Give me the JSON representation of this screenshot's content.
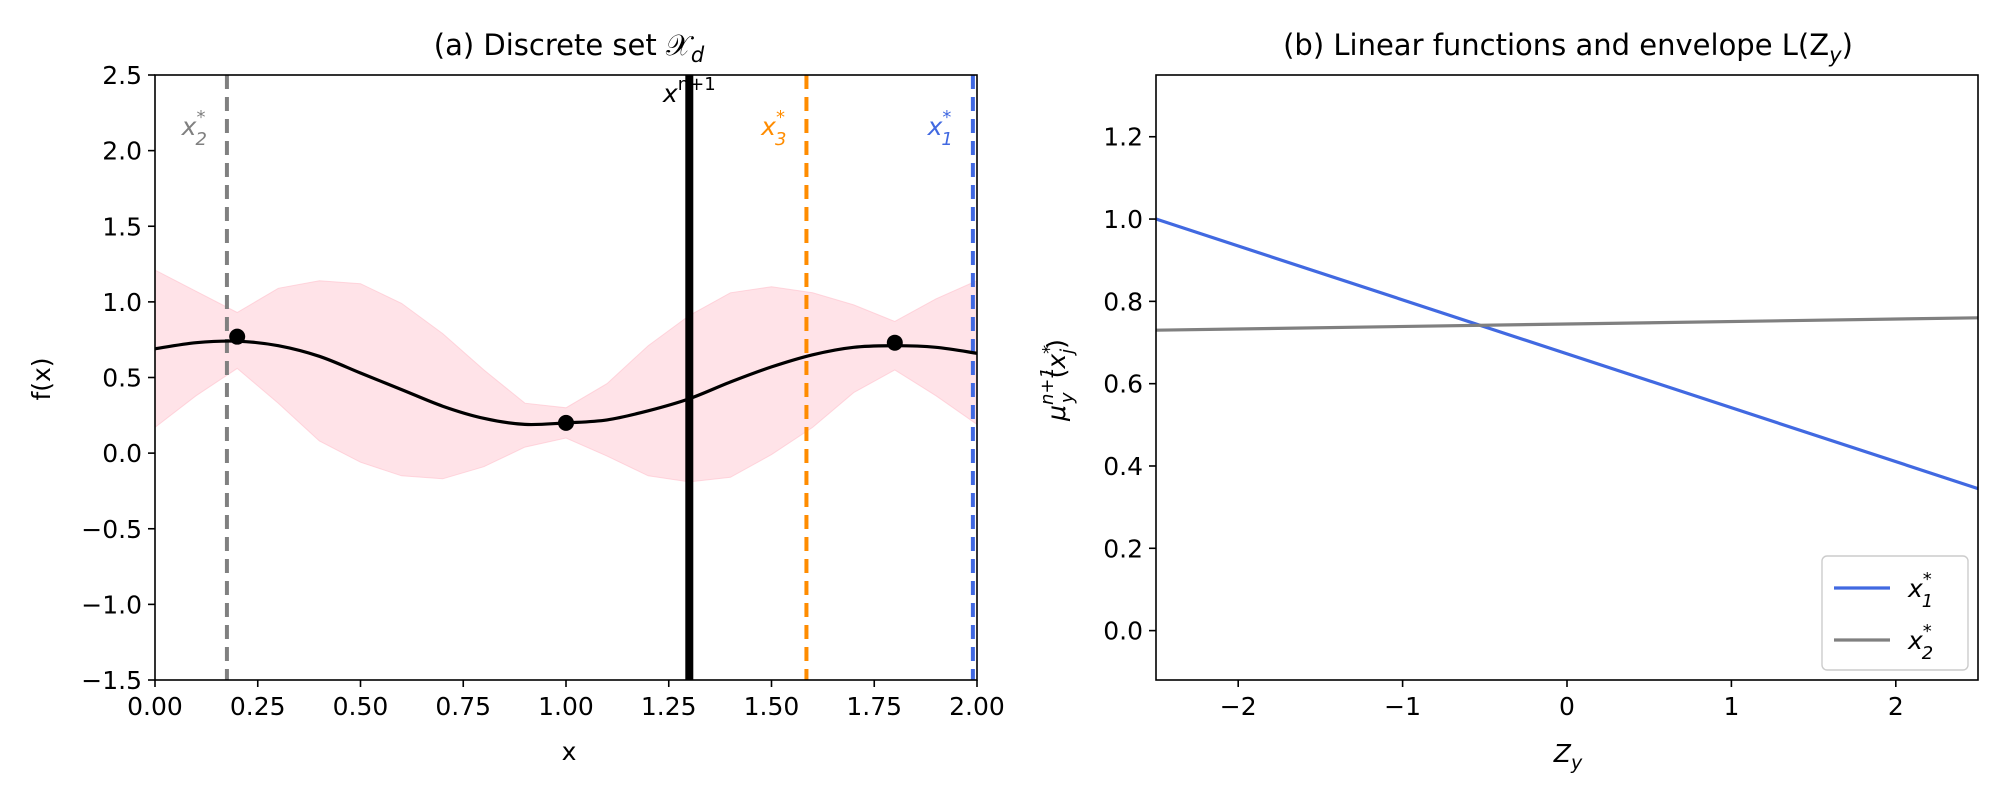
{
  "chart_data": [
    {
      "type": "line",
      "title": "(a) Discrete set 𝒳",
      "title_subscript": "d",
      "xlabel": "x",
      "ylabel": "f(x)",
      "xlim": [
        0.0,
        2.0
      ],
      "ylim": [
        -1.5,
        2.5
      ],
      "x_ticks": [
        "0.00",
        "0.25",
        "0.50",
        "0.75",
        "1.00",
        "1.25",
        "1.50",
        "1.75",
        "2.00"
      ],
      "y_ticks": [
        "−1.5",
        "−1.0",
        "−0.5",
        "0.0",
        "0.5",
        "1.0",
        "1.5",
        "2.0",
        "2.5"
      ],
      "grid": false,
      "mean_curve": {
        "color": "#000000",
        "x": [
          0.0,
          0.1,
          0.2,
          0.3,
          0.4,
          0.5,
          0.6,
          0.7,
          0.8,
          0.9,
          1.0,
          1.1,
          1.2,
          1.3,
          1.4,
          1.5,
          1.6,
          1.7,
          1.8,
          1.9,
          2.0
        ],
        "y": [
          0.69,
          0.73,
          0.74,
          0.71,
          0.64,
          0.53,
          0.42,
          0.31,
          0.23,
          0.19,
          0.2,
          0.22,
          0.28,
          0.36,
          0.47,
          0.57,
          0.65,
          0.7,
          0.71,
          0.7,
          0.66
        ]
      },
      "confidence_band": {
        "color": "#ffc0cb",
        "x": [
          0.0,
          0.1,
          0.2,
          0.3,
          0.4,
          0.5,
          0.6,
          0.7,
          0.8,
          0.9,
          1.0,
          1.1,
          1.2,
          1.3,
          1.4,
          1.5,
          1.6,
          1.7,
          1.8,
          1.9,
          2.0
        ],
        "lower": [
          0.17,
          0.38,
          0.56,
          0.33,
          0.08,
          -0.06,
          -0.15,
          -0.17,
          -0.09,
          0.04,
          0.1,
          -0.02,
          -0.15,
          -0.19,
          -0.16,
          -0.01,
          0.17,
          0.4,
          0.55,
          0.38,
          0.19
        ],
        "upper": [
          1.21,
          1.07,
          0.93,
          1.09,
          1.14,
          1.12,
          0.99,
          0.79,
          0.55,
          0.33,
          0.3,
          0.46,
          0.71,
          0.91,
          1.06,
          1.1,
          1.06,
          0.98,
          0.87,
          1.02,
          1.14
        ]
      },
      "observed_points": {
        "color": "#000000",
        "x": [
          0.2,
          1.0,
          1.8
        ],
        "y": [
          0.77,
          0.2,
          0.73
        ]
      },
      "vertical_lines": [
        {
          "x": 0.175,
          "color": "#808080",
          "style": "dashed",
          "label": "x",
          "sub": "2",
          "sup": "*"
        },
        {
          "x": 1.3,
          "color": "#000000",
          "style": "solid",
          "label": "x",
          "sub": "",
          "sup": "n+1"
        },
        {
          "x": 1.585,
          "color": "#ff8c00",
          "style": "dashed",
          "label": "x",
          "sub": "3",
          "sup": "*"
        },
        {
          "x": 1.99,
          "color": "#4169e1",
          "style": "dashed",
          "label": "x",
          "sub": "1",
          "sup": "*"
        }
      ]
    },
    {
      "type": "line",
      "title": "(b) Linear functions and envelope L(Z",
      "title_tail": ")",
      "title_subscript": "y",
      "xlabel": "Z",
      "xlabel_subscript": "y",
      "ylabel": "μ",
      "xlim": [
        -2.5,
        2.5
      ],
      "ylim": [
        -0.12,
        1.35
      ],
      "x_ticks": [
        "−2",
        "−1",
        "0",
        "1",
        "2"
      ],
      "y_ticks": [
        "0.0",
        "0.2",
        "0.4",
        "0.6",
        "0.8",
        "1.0",
        "1.2"
      ],
      "grid": false,
      "legend_position": "lower-right",
      "series": [
        {
          "name": "x",
          "name_sub": "1",
          "name_sup": "*",
          "color": "#4169e1",
          "x": [
            -2.5,
            2.5
          ],
          "y": [
            1.0,
            0.345
          ]
        },
        {
          "name": "x",
          "name_sub": "2",
          "name_sup": "*",
          "color": "#808080",
          "x": [
            -2.5,
            2.5
          ],
          "y": [
            0.73,
            0.76
          ]
        }
      ]
    }
  ]
}
